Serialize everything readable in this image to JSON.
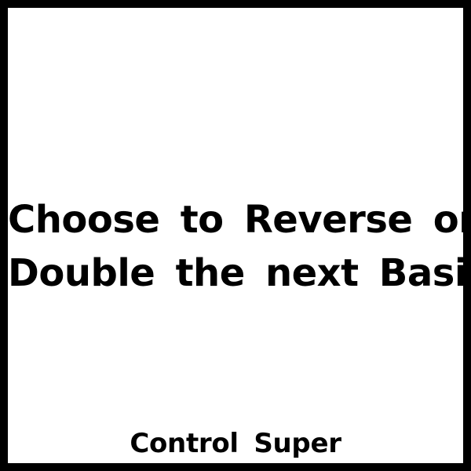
{
  "card": {
    "text_lines": [
      "Choose to Reverse or",
      "Double the next Basic"
    ],
    "footer": "Control Super",
    "colors": {
      "border": "#000000",
      "background": "#ffffff",
      "text": "#000000"
    }
  }
}
